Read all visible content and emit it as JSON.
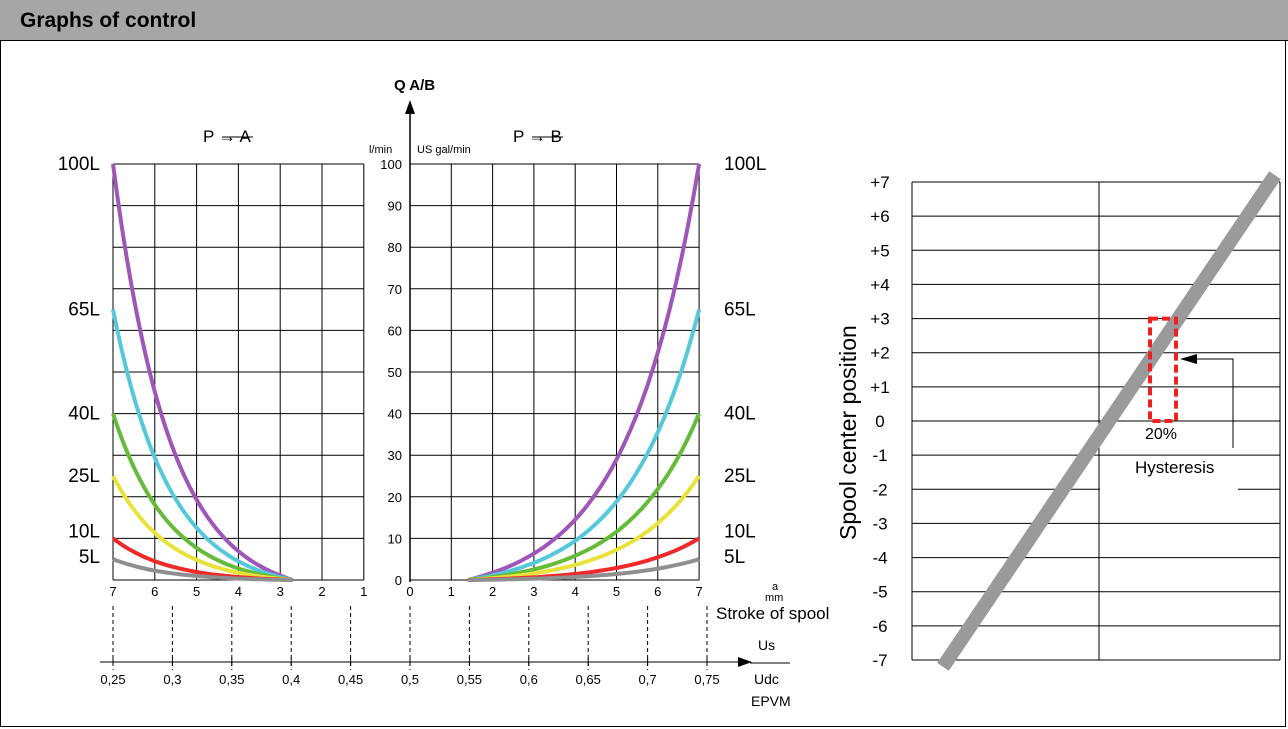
{
  "header": {
    "title": "Graphs of control"
  },
  "colors": {
    "header_bg": "#a6a6a6",
    "series": {
      "100L": "#a056b8",
      "65L": "#55c8dc",
      "40L": "#66bb3a",
      "25L": "#e8e23a",
      "10L": "#ee2a2a",
      "5L": "#8f8f8f"
    },
    "hysteresis_band": "#9a9a9a",
    "hysteresis_box": "#ee2020"
  },
  "chart_data": [
    {
      "type": "line",
      "chart": "flow",
      "axis_title": "Q A/B",
      "units": {
        "lpm": "l/min",
        "gpm": "US gal/min"
      },
      "left_label": "P → A",
      "right_label": "P → B",
      "y_ticks": [
        "0",
        "10",
        "20",
        "30",
        "40",
        "50",
        "60",
        "70",
        "80",
        "90",
        "100"
      ],
      "ylim": [
        0,
        100
      ],
      "stroke_unit": [
        "a",
        "mm"
      ],
      "stroke_axis_label": "Stroke of spool",
      "stroke_ticks_left": [
        "7",
        "6",
        "5",
        "4",
        "3",
        "2",
        "1"
      ],
      "stroke_ticks_right": [
        "0",
        "1",
        "2",
        "3",
        "4",
        "5",
        "6",
        "7"
      ],
      "ratio_axis_label": [
        "Us",
        "Udc",
        "EPVM"
      ],
      "ratio_ticks": [
        "0,25",
        "0,3",
        "0,35",
        "0,4",
        "0,45",
        "0,5",
        "0,55",
        "0,6",
        "0,65",
        "0,7",
        "0,75"
      ],
      "series": [
        {
          "name": "100L",
          "y_end": 100
        },
        {
          "name": "65L",
          "y_end": 65
        },
        {
          "name": "40L",
          "y_end": 40
        },
        {
          "name": "25L",
          "y_end": 25
        },
        {
          "name": "10L",
          "y_end": 10
        },
        {
          "name": "5L",
          "y_end": 5
        }
      ]
    },
    {
      "type": "line",
      "chart": "hysteresis",
      "ylabel": "Spool center position",
      "y_ticks": [
        "+7",
        "+6",
        "+5",
        "+4",
        "+3",
        "+2",
        "+1",
        "0",
        "-1",
        "-2",
        "-3",
        "-4",
        "-5",
        "-6",
        "-7"
      ],
      "ylim": [
        -7,
        7
      ],
      "annotation_percent": "20%",
      "annotation_label": "Hysteresis"
    }
  ]
}
